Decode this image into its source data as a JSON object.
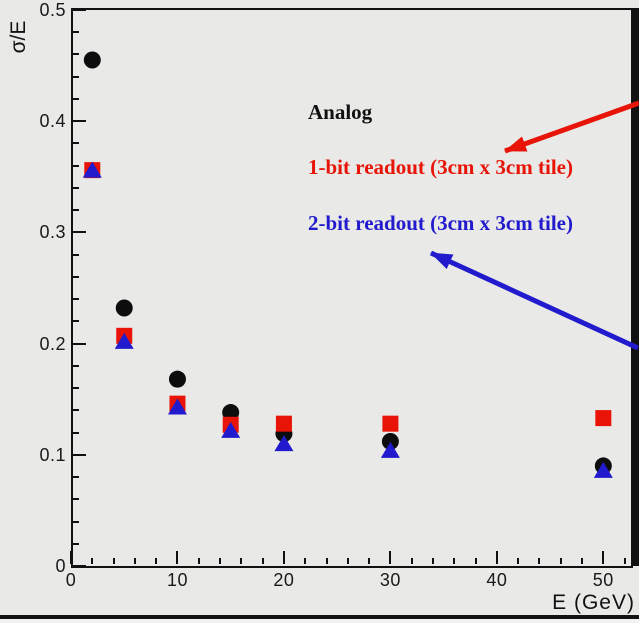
{
  "figure": {
    "y_axis_title": "σ/E",
    "x_axis_title": "E (GeV)"
  },
  "legend": {
    "entries": [
      {
        "label": "Analog",
        "color": "#111111"
      },
      {
        "label": "1-bit readout (3cm x 3cm tile)",
        "color": "#e81408"
      },
      {
        "label": "2-bit readout (3cm x 3cm tile)",
        "color": "#221bcd"
      }
    ]
  },
  "chart_data": {
    "type": "scatter",
    "x": [
      2,
      5,
      10,
      15,
      20,
      30,
      50
    ],
    "series": [
      {
        "name": "Analog",
        "marker": "circle",
        "color": "#0d0d0d",
        "values": [
          0.455,
          0.232,
          0.168,
          0.138,
          0.119,
          0.112,
          0.09
        ]
      },
      {
        "name": "1-bit readout (3cm x 3cm tile)",
        "marker": "square",
        "color": "#e81408",
        "values": [
          0.356,
          0.207,
          0.146,
          0.127,
          0.128,
          0.128,
          0.133
        ]
      },
      {
        "name": "2-bit readout (3cm x 3cm tile)",
        "marker": "triangle-up",
        "color": "#221bcd",
        "values": [
          0.356,
          0.202,
          0.143,
          0.122,
          0.11,
          0.104,
          0.086
        ]
      }
    ],
    "title": "",
    "xlabel": "E (GeV)",
    "ylabel": "σ/E",
    "xlim": [
      0,
      52.6
    ],
    "ylim": [
      0,
      0.5
    ],
    "x_ticks": [
      0,
      10,
      20,
      30,
      40,
      50
    ],
    "x_tick_labels": [
      "0",
      "10",
      "20",
      "30",
      "40",
      "50"
    ],
    "x_minor_step": 2,
    "y_ticks": [
      0,
      0.1,
      0.2,
      0.3,
      0.4,
      0.5
    ],
    "y_tick_labels": [
      "0",
      "0.1",
      "0.2",
      "0.3",
      "0.4",
      "0.5"
    ],
    "y_minor_step": 0.02,
    "grid": false,
    "legend_position": "upper-right"
  }
}
